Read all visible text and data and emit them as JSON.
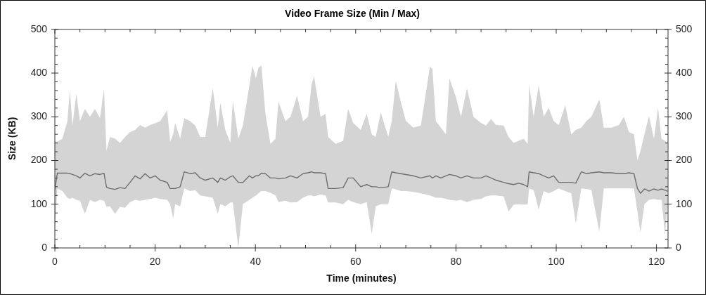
{
  "chart_data": {
    "type": "line",
    "title": "Video Frame Size (Min / Max)",
    "xlabel": "Time (minutes)",
    "ylabel": "Size (KB)",
    "x": [
      0,
      0.5,
      1.5,
      2.5,
      3,
      3.5,
      4.3,
      5,
      6,
      7,
      8,
      9,
      9.8,
      10.3,
      11,
      12,
      13,
      14,
      15,
      16,
      17,
      18,
      19,
      20,
      21,
      22.4,
      23,
      23.6,
      24,
      25,
      25.8,
      27,
      28,
      29,
      30,
      31.5,
      32.5,
      33,
      34,
      35,
      35.5,
      36.6,
      37.5,
      38.8,
      39.4,
      40.1,
      40.6,
      41.2,
      42,
      43,
      44,
      44.6,
      46,
      47,
      48.3,
      49.5,
      50.5,
      51.2,
      51.7,
      53,
      54,
      54.5,
      56,
      57.5,
      58.5,
      59.5,
      61,
      62.2,
      63.2,
      64,
      65,
      66.5,
      67.2,
      68,
      69,
      70,
      71.5,
      73,
      74.8,
      75.3,
      76,
      77,
      78,
      78.7,
      80,
      81,
      82.2,
      83.5,
      85,
      86,
      87,
      88,
      89.5,
      90.5,
      91.5,
      92.5,
      93.5,
      94.3,
      94.6,
      95.5,
      96.5,
      97.5,
      98.5,
      99.5,
      100.5,
      101.8,
      103,
      103.9,
      105,
      106,
      107,
      108.6,
      109.5,
      111,
      112.5,
      113.5,
      114.5,
      115.5,
      116.2,
      116.8,
      117.6,
      118.5,
      119.5,
      120.3,
      121,
      121.7,
      122.2
    ],
    "series": [
      {
        "color": "#6e6e6e",
        "values": [
          134,
          171,
          171,
          171,
          170,
          168,
          165,
          160,
          171,
          165,
          170,
          168,
          171,
          139,
          136,
          134,
          138,
          136,
          150,
          165,
          158,
          170,
          160,
          165,
          155,
          150,
          136,
          136,
          136,
          140,
          174,
          170,
          172,
          160,
          155,
          160,
          150,
          160,
          155,
          163,
          165,
          150,
          150,
          165,
          160,
          165,
          165,
          171,
          170,
          160,
          160,
          158,
          160,
          165,
          160,
          170,
          172,
          174,
          172,
          172,
          170,
          136,
          136,
          138,
          160,
          160,
          140,
          145,
          140,
          140,
          138,
          140,
          174,
          172,
          170,
          168,
          165,
          160,
          165,
          160,
          165,
          160,
          165,
          168,
          165,
          160,
          165,
          160,
          160,
          165,
          160,
          155,
          150,
          147,
          145,
          148,
          145,
          140,
          174,
          172,
          170,
          165,
          160,
          165,
          150,
          150,
          150,
          148,
          174,
          170,
          172,
          174,
          172,
          172,
          170,
          170,
          172,
          170,
          136,
          125,
          135,
          130,
          135,
          132,
          135,
          132,
          130
        ],
        "lower": [
          40,
          136,
          130,
          115,
          112,
          115,
          110,
          108,
          78,
          110,
          105,
          110,
          108,
          94,
          95,
          78,
          94,
          92,
          105,
          110,
          108,
          110,
          112,
          115,
          112,
          110,
          100,
          67,
          100,
          95,
          136,
          130,
          132,
          120,
          118,
          115,
          78,
          100,
          95,
          104,
          104,
          0,
          100,
          110,
          115,
          120,
          125,
          130,
          130,
          126,
          120,
          105,
          108,
          104,
          105,
          115,
          120,
          120,
          118,
          122,
          120,
          104,
          104,
          100,
          110,
          105,
          100,
          105,
          32,
          95,
          100,
          100,
          136,
          134,
          130,
          130,
          128,
          125,
          120,
          118,
          115,
          115,
          112,
          110,
          108,
          110,
          105,
          110,
          112,
          118,
          120,
          120,
          118,
          83,
          99,
          100,
          99,
          100,
          136,
          132,
          88,
          130,
          125,
          130,
          136,
          130,
          125,
          56,
          136,
          135,
          133,
          37,
          136,
          136,
          136,
          136,
          136,
          136,
          83,
          35,
          100,
          110,
          112,
          110,
          110,
          30,
          100
        ],
        "upper": [
          243,
          243,
          250,
          290,
          361,
          280,
          353,
          290,
          318,
          300,
          318,
          297,
          364,
          222,
          254,
          250,
          240,
          254,
          265,
          270,
          281,
          275,
          281,
          285,
          290,
          315,
          243,
          260,
          286,
          250,
          297,
          290,
          280,
          254,
          254,
          366,
          275,
          332,
          270,
          240,
          337,
          250,
          280,
          372,
          417,
          388,
          412,
          417,
          307,
          238,
          250,
          334,
          290,
          300,
          348,
          290,
          300,
          374,
          393,
          300,
          307,
          254,
          238,
          245,
          318,
          286,
          270,
          307,
          260,
          254,
          310,
          254,
          291,
          382,
          334,
          291,
          275,
          280,
          414,
          410,
          290,
          275,
          260,
          388,
          345,
          300,
          365,
          300,
          286,
          280,
          295,
          281,
          280,
          254,
          240,
          245,
          250,
          238,
          374,
          300,
          372,
          300,
          320,
          290,
          281,
          326,
          260,
          270,
          275,
          290,
          300,
          340,
          275,
          275,
          281,
          300,
          265,
          260,
          200,
          222,
          260,
          302,
          250,
          321,
          250,
          245,
          240
        ]
      }
    ],
    "xlim": [
      0,
      122.3
    ],
    "xticks": [
      0,
      {
        "value": 5,
        "label": null
      },
      {
        "value": 10,
        "label": null
      },
      {
        "value": 15,
        "label": null
      },
      20,
      {
        "value": 25,
        "label": null
      },
      {
        "value": 30,
        "label": null
      },
      {
        "value": 35,
        "label": null
      },
      40,
      {
        "value": 45,
        "label": null
      },
      {
        "value": 50,
        "label": null
      },
      {
        "value": 55,
        "label": null
      },
      60,
      {
        "value": 65,
        "label": null
      },
      {
        "value": 70,
        "label": null
      },
      {
        "value": 75,
        "label": null
      },
      80,
      {
        "value": 85,
        "label": null
      },
      {
        "value": 90,
        "label": null
      },
      {
        "value": 95,
        "label": null
      },
      100,
      {
        "value": 105,
        "label": null
      },
      {
        "value": 110,
        "label": null
      },
      {
        "value": 115,
        "label": null
      },
      120
    ],
    "ylim": [
      0,
      500
    ],
    "yticks": [
      0,
      {
        "value": 20,
        "label": null
      },
      {
        "value": 40,
        "label": null
      },
      {
        "value": 60,
        "label": null
      },
      {
        "value": 80,
        "label": null
      },
      100,
      {
        "value": 120,
        "label": null
      },
      {
        "value": 140,
        "label": null
      },
      {
        "value": 160,
        "label": null
      },
      {
        "value": 180,
        "label": null
      },
      200,
      {
        "value": 220,
        "label": null
      },
      {
        "value": 240,
        "label": null
      },
      {
        "value": 260,
        "label": null
      },
      {
        "value": 280,
        "label": null
      },
      300,
      {
        "value": 320,
        "label": null
      },
      {
        "value": 340,
        "label": null
      },
      {
        "value": 360,
        "label": null
      },
      {
        "value": 380,
        "label": null
      },
      400,
      {
        "value": 420,
        "label": null
      },
      {
        "value": 440,
        "label": null
      },
      {
        "value": 460,
        "label": null
      },
      {
        "value": 480,
        "label": null
      },
      500
    ],
    "y2lim": [
      0,
      500
    ],
    "y2ticks": [
      0,
      {
        "value": 20,
        "label": null
      },
      {
        "value": 40,
        "label": null
      },
      {
        "value": 60,
        "label": null
      },
      {
        "value": 80,
        "label": null
      },
      100,
      {
        "value": 120,
        "label": null
      },
      {
        "value": 140,
        "label": null
      },
      {
        "value": 160,
        "label": null
      },
      {
        "value": 180,
        "label": null
      },
      200,
      {
        "value": 220,
        "label": null
      },
      {
        "value": 240,
        "label": null
      },
      {
        "value": 260,
        "label": null
      },
      {
        "value": 280,
        "label": null
      },
      300,
      {
        "value": 320,
        "label": null
      },
      {
        "value": 340,
        "label": null
      },
      {
        "value": 360,
        "label": null
      },
      {
        "value": 380,
        "label": null
      },
      400,
      {
        "value": 420,
        "label": null
      },
      {
        "value": 440,
        "label": null
      },
      {
        "value": 460,
        "label": null
      },
      {
        "value": 480,
        "label": null
      },
      500
    ],
    "grid": false,
    "legend": false
  }
}
